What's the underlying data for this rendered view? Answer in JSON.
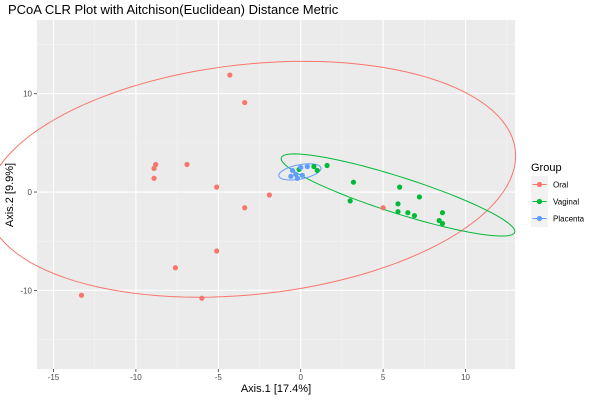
{
  "chart_data": {
    "type": "scatter",
    "title": "PCoA CLR Plot with Aitchison(Euclidean) Distance Metric",
    "xlabel": "Axis.1   [17.4%]",
    "ylabel": "Axis.2   [9.9%]",
    "xlim": [
      -16.0,
      13.0
    ],
    "ylim": [
      -18.0,
      17.5
    ],
    "x_ticks": [
      -15,
      -10,
      -5,
      0,
      5,
      10
    ],
    "y_ticks": [
      -10,
      0,
      10
    ],
    "grid": true,
    "legend": {
      "title": "Group",
      "position": "right"
    },
    "series": [
      {
        "name": "Oral",
        "color": "#F8766D",
        "points": [
          [
            -4.3,
            11.9
          ],
          [
            -3.4,
            9.1
          ],
          [
            -8.8,
            2.8
          ],
          [
            -8.9,
            2.4
          ],
          [
            -6.9,
            2.8
          ],
          [
            -8.9,
            1.4
          ],
          [
            -5.1,
            0.5
          ],
          [
            -1.9,
            -0.3
          ],
          [
            -3.4,
            -1.6
          ],
          [
            -5.1,
            -6.0
          ],
          [
            -7.6,
            -7.7
          ],
          [
            -6.0,
            -10.8
          ],
          [
            -13.3,
            -10.5
          ],
          [
            5.0,
            -1.6
          ]
        ],
        "ellipse": {
          "cx": -3.0,
          "cy": 1.3,
          "rx": 16.4,
          "ry": 11.5,
          "angle_deg": 17.0
        }
      },
      {
        "name": "Vaginal",
        "color": "#00BA38",
        "points": [
          [
            0.8,
            2.6
          ],
          [
            1.6,
            2.7
          ],
          [
            1.0,
            2.2
          ],
          [
            3.2,
            1.0
          ],
          [
            3.0,
            -0.9
          ],
          [
            6.0,
            0.5
          ],
          [
            7.2,
            -0.5
          ],
          [
            5.9,
            -1.2
          ],
          [
            5.9,
            -2.0
          ],
          [
            6.5,
            -2.1
          ],
          [
            6.9,
            -2.4
          ],
          [
            8.6,
            -2.1
          ],
          [
            8.4,
            -2.9
          ],
          [
            8.6,
            -3.2
          ],
          [
            -0.1,
            2.3
          ]
        ],
        "ellipse": {
          "cx": 5.9,
          "cy": -0.3,
          "rx": 8.05,
          "ry": 1.7,
          "angle_deg": -29.0
        }
      },
      {
        "name": "Placenta",
        "color": "#619CFF",
        "points": [
          [
            -0.5,
            2.2
          ],
          [
            0.0,
            2.5
          ],
          [
            0.4,
            2.6
          ],
          [
            -0.3,
            1.8
          ],
          [
            0.1,
            1.7
          ],
          [
            -0.2,
            1.4
          ],
          [
            -0.6,
            1.6
          ]
        ],
        "ellipse": {
          "cx": -0.05,
          "cy": 2.05,
          "rx": 1.35,
          "ry": 0.7,
          "angle_deg": 22.0
        }
      }
    ]
  }
}
